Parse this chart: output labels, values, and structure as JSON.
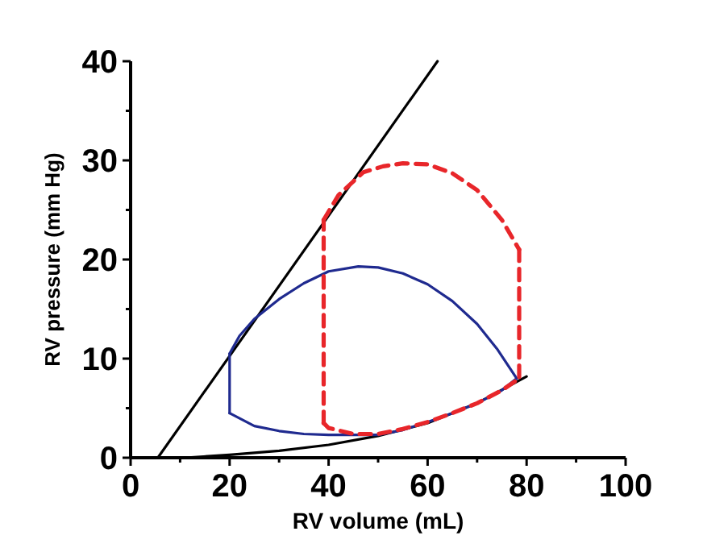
{
  "chart_data": {
    "type": "line",
    "xlabel": "RV volume (mL)",
    "ylabel": "RV pressure (mm Hg)",
    "xlim": [
      0,
      100
    ],
    "ylim": [
      0,
      40
    ],
    "xticks": [
      0,
      {
        "value": 10,
        "label": null
      },
      20,
      {
        "value": 30,
        "label": null
      },
      40,
      {
        "value": 50,
        "label": null
      },
      60,
      {
        "value": 70,
        "label": null
      },
      80,
      {
        "value": 90,
        "label": null
      },
      100
    ],
    "yticks": [
      0,
      {
        "value": 5,
        "label": null
      },
      10,
      {
        "value": 15,
        "label": null
      },
      20,
      {
        "value": 25,
        "label": null
      },
      30,
      {
        "value": 35,
        "label": null
      },
      40
    ],
    "grid": false,
    "marker": "none",
    "series": [
      {
        "color": "#000000",
        "line_style": "solid",
        "x": [
          5.5,
          62
        ],
        "values": [
          0,
          40
        ]
      },
      {
        "color": "#000000",
        "line_style": "solid",
        "x": [
          11,
          20,
          30,
          40,
          50,
          60,
          70,
          80
        ],
        "values": [
          0,
          0.3,
          0.7,
          1.3,
          2.2,
          3.5,
          5.5,
          8.2
        ]
      },
      {
        "color": "#1f2a8f",
        "line_style": "solid",
        "x": [
          20,
          22,
          25,
          30,
          35,
          40,
          46,
          50,
          55,
          60,
          65,
          70,
          74,
          78
        ],
        "values": [
          10.5,
          12.3,
          14,
          16,
          17.6,
          18.8,
          19.3,
          19.2,
          18.6,
          17.5,
          15.8,
          13.5,
          11,
          8
        ]
      },
      {
        "color": "#1f2a8f",
        "line_style": "solid",
        "x": [
          20,
          20
        ],
        "values": [
          4.5,
          10.5
        ]
      },
      {
        "color": "#1f2a8f",
        "line_style": "solid",
        "x": [
          20,
          25,
          30,
          35,
          40,
          45,
          50,
          55,
          60,
          65,
          70,
          75,
          78
        ],
        "values": [
          4.5,
          3.2,
          2.7,
          2.4,
          2.3,
          2.3,
          2.3,
          2.8,
          3.6,
          4.5,
          5.5,
          6.8,
          8
        ]
      },
      {
        "color": "#e8262a",
        "line_style": "dashed",
        "x": [
          39,
          39
        ],
        "values": [
          3.5,
          24
        ]
      },
      {
        "color": "#e8262a",
        "line_style": "dashed",
        "x": [
          39,
          42,
          47,
          51,
          55,
          60,
          65,
          70,
          75,
          78.5
        ],
        "values": [
          24,
          26.5,
          28.8,
          29.4,
          29.7,
          29.6,
          28.7,
          27,
          24,
          21
        ]
      },
      {
        "color": "#e8262a",
        "line_style": "dashed",
        "x": [
          78.5,
          78.5
        ],
        "values": [
          21,
          8
        ]
      },
      {
        "color": "#e8262a",
        "line_style": "dashed",
        "x": [
          39,
          40,
          45,
          50,
          55,
          60,
          65,
          70,
          75,
          78.5
        ],
        "values": [
          3.5,
          3,
          2.4,
          2.4,
          2.9,
          3.6,
          4.5,
          5.5,
          6.8,
          8
        ]
      }
    ]
  }
}
